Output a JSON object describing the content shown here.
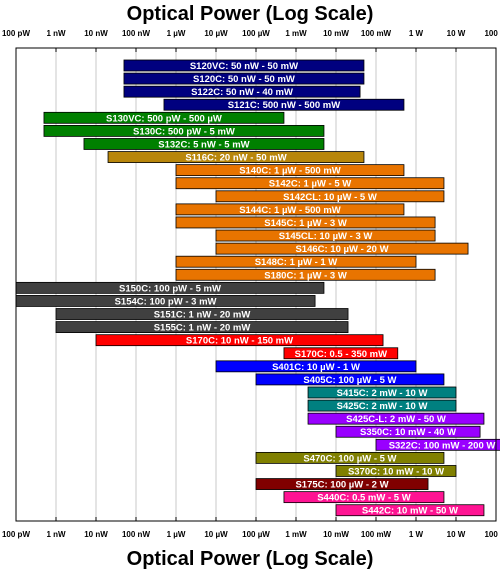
{
  "title_top": "Optical Power (Log Scale)",
  "title_bottom": "Optical Power (Log Scale)",
  "chart_data": {
    "type": "bar",
    "orientation": "horizontal-range",
    "title": "Optical Power (Log Scale)",
    "xlabel": "Optical Power (Log Scale)",
    "x_scale": "log",
    "x_unit": "W",
    "xlim": [
      1e-10,
      100
    ],
    "grid": true,
    "tick_labels": [
      "100 pW",
      "1 nW",
      "10 nW",
      "100 nW",
      "1 µW",
      "10 µW",
      "100 µW",
      "1 mW",
      "10 mW",
      "100 mW",
      "1 W",
      "10 W",
      "100 W"
    ],
    "tick_values": [
      1e-10,
      1e-09,
      1e-08,
      1e-07,
      1e-06,
      1e-05,
      0.0001,
      0.001,
      0.01,
      0.1,
      1,
      10,
      100
    ],
    "bars": [
      {
        "label": "S120VC: 50 nW - 50 mW",
        "min": 5e-08,
        "max": 0.05,
        "color": "#00007f"
      },
      {
        "label": "S120C: 50 nW - 50 mW",
        "min": 5e-08,
        "max": 0.05,
        "color": "#00007f"
      },
      {
        "label": "S122C: 50 nW - 40 mW",
        "min": 5e-08,
        "max": 0.04,
        "color": "#00007f"
      },
      {
        "label": "S121C: 500 nW - 500 mW",
        "min": 5e-07,
        "max": 0.5,
        "color": "#00007f"
      },
      {
        "label": "S130VC: 500 pW - 500 µW",
        "min": 5e-10,
        "max": 0.0005,
        "color": "#008000"
      },
      {
        "label": "S130C: 500 pW - 5 mW",
        "min": 5e-10,
        "max": 0.005,
        "color": "#008000"
      },
      {
        "label": "S132C: 5 nW - 5 mW",
        "min": 5e-09,
        "max": 0.005,
        "color": "#008000"
      },
      {
        "label": "S116C: 20 nW - 50 mW",
        "min": 2e-08,
        "max": 0.05,
        "color": "#b8860b"
      },
      {
        "label": "S140C: 1 µW - 500 mW",
        "min": 1e-06,
        "max": 0.5,
        "color": "#e87400"
      },
      {
        "label": "S142C: 1 µW - 5 W",
        "min": 1e-06,
        "max": 5,
        "color": "#e87400"
      },
      {
        "label": "S142CL: 10 µW - 5 W",
        "min": 1e-05,
        "max": 5,
        "color": "#e87400"
      },
      {
        "label": "S144C: 1 µW - 500 mW",
        "min": 1e-06,
        "max": 0.5,
        "color": "#e87400"
      },
      {
        "label": "S145C: 1 µW - 3 W",
        "min": 1e-06,
        "max": 3,
        "color": "#e87400"
      },
      {
        "label": "S145CL: 10 µW - 3 W",
        "min": 1e-05,
        "max": 3,
        "color": "#e87400"
      },
      {
        "label": "S146C: 10 µW - 20 W",
        "min": 1e-05,
        "max": 20,
        "color": "#e87400"
      },
      {
        "label": "S148C: 1 µW - 1 W",
        "min": 1e-06,
        "max": 1,
        "color": "#e87400"
      },
      {
        "label": "S180C: 1 µW - 3 W",
        "min": 1e-06,
        "max": 3,
        "color": "#e87400"
      },
      {
        "label": "S150C: 100 pW - 5 mW",
        "min": 1e-10,
        "max": 0.005,
        "color": "#404040"
      },
      {
        "label": "S154C: 100 pW - 3 mW",
        "min": 1e-10,
        "max": 0.003,
        "color": "#404040"
      },
      {
        "label": "S151C: 1 nW - 20 mW",
        "min": 1e-09,
        "max": 0.02,
        "color": "#404040"
      },
      {
        "label": "S155C: 1 nW - 20 mW",
        "min": 1e-09,
        "max": 0.02,
        "color": "#404040"
      },
      {
        "label": "S170C: 10 nW - 150 mW",
        "min": 1e-08,
        "max": 0.15,
        "color": "#ff0000"
      },
      {
        "label": "S170C: 0.5 - 350 mW",
        "min": 0.0005,
        "max": 0.35,
        "color": "#ff0000"
      },
      {
        "label": "S401C: 10 µW - 1 W",
        "min": 1e-05,
        "max": 1,
        "color": "#0000ff"
      },
      {
        "label": "S405C: 100 µW - 5 W",
        "min": 0.0001,
        "max": 5,
        "color": "#0000ff"
      },
      {
        "label": "S415C: 2 mW - 10 W",
        "min": 0.002,
        "max": 10,
        "color": "#008080"
      },
      {
        "label": "S425C: 2 mW - 10 W",
        "min": 0.002,
        "max": 10,
        "color": "#008080"
      },
      {
        "label": "S425C-L: 2 mW - 50 W",
        "min": 0.002,
        "max": 50,
        "color": "#9900ff"
      },
      {
        "label": "S350C: 10 mW - 40 W",
        "min": 0.01,
        "max": 40,
        "color": "#9900ff"
      },
      {
        "label": "S322C: 100 mW - 200 W",
        "min": 0.1,
        "max": 200,
        "color": "#9900ff"
      },
      {
        "label": "S470C: 100 µW - 5 W",
        "min": 0.0001,
        "max": 5,
        "color": "#808000"
      },
      {
        "label": "S370C: 10 mW - 10 W",
        "min": 0.01,
        "max": 10,
        "color": "#808000"
      },
      {
        "label": "S175C: 100 µW - 2 W",
        "min": 0.0001,
        "max": 2,
        "color": "#800000"
      },
      {
        "label": "S440C: 0.5 mW - 5 W",
        "min": 0.0005,
        "max": 5,
        "color": "#ff1493"
      },
      {
        "label": "S442C: 10 mW - 50 W",
        "min": 0.01,
        "max": 50,
        "color": "#ff1493"
      }
    ]
  }
}
